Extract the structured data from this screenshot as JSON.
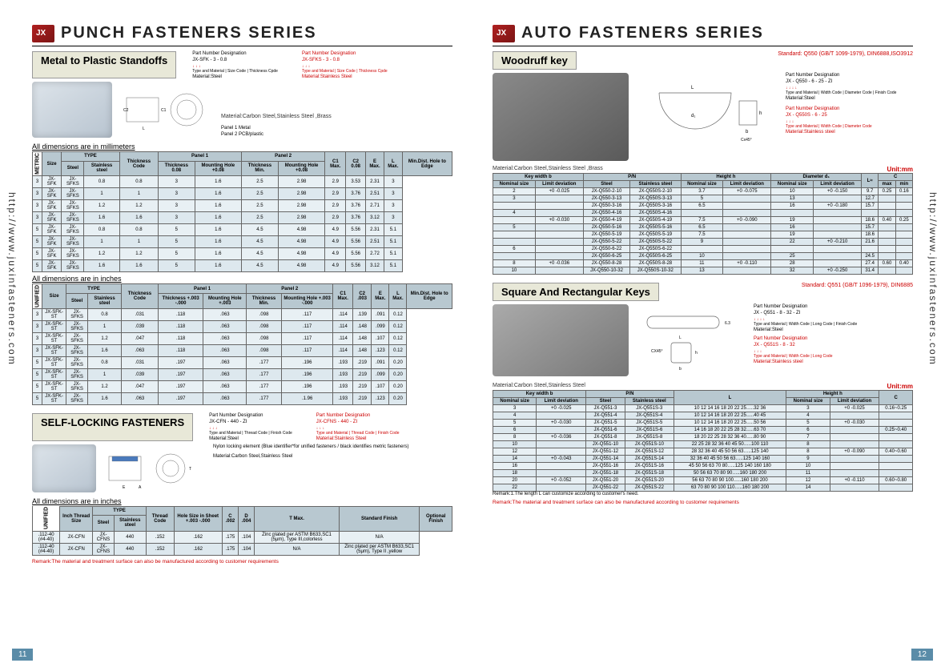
{
  "url": "http://www.juxinfasteners.com",
  "left_page": {
    "page_num": "11",
    "series_title": "PUNCH FASTENERS SERIES",
    "section1": {
      "title": "Metal to Plastic Standoffs",
      "pn1_label": "Part Number Designation",
      "pn1_example": "JX-SFK - 3 - 0.8",
      "pn1_parts": "Type and Material | Size Code | Thickness Cpde",
      "pn1_mat": "Material:Steel",
      "pn2_label": "Part Number Designation",
      "pn2_example": "JX-SFKS - 3 - 0.8",
      "pn2_parts": "Type and Material | Size Code | Thickness Cpde",
      "pn2_mat": "Material:Stainless Steel",
      "material": "Material:Carbon Steel,Stainless Steel ,Brass",
      "legend_p1": "Panel 1 Metal",
      "legend_p2": "Panel 2 PCB/plastic",
      "dims_mm": "All dimensions are in millimeters",
      "dims_in": "All dimensions are in inches",
      "table1_headers": [
        "Size",
        "TYPE",
        "",
        "Thickness Code",
        "Panel 1",
        "",
        "Panel 2",
        "",
        "C1 Max.",
        "C2 0.08",
        "E Max.",
        "L Max.",
        "Min.Dist. Hole to Edge"
      ],
      "table1_sub": [
        "",
        "Steel",
        "Stainless steel",
        "",
        "Thickness 0.08",
        "Mounting Hole +0.08",
        "Thickness Min.",
        "Mounting Hole +0.08",
        "",
        "",
        "",
        "",
        ""
      ],
      "table1_rows": [
        [
          "3",
          "JX-SFK",
          "JX-SFKS",
          "0.8",
          "0.8",
          "3",
          "1.6",
          "2.5",
          "2.98",
          "2.9",
          "3.53",
          "2.31",
          "3"
        ],
        [
          "3",
          "JX-SFK",
          "JX-SFKS",
          "1",
          "1",
          "3",
          "1.6",
          "2.5",
          "2.98",
          "2.9",
          "3.76",
          "2.51",
          "3"
        ],
        [
          "3",
          "JX-SFK",
          "JX-SFKS",
          "1.2",
          "1.2",
          "3",
          "1.6",
          "2.5",
          "2.98",
          "2.9",
          "3.76",
          "2.71",
          "3"
        ],
        [
          "3",
          "JX-SFK",
          "JX-SFKS",
          "1.6",
          "1.6",
          "3",
          "1.6",
          "2.5",
          "2.98",
          "2.9",
          "3.76",
          "3.12",
          "3"
        ],
        [
          "5",
          "JX-SFK",
          "JX-SFKS",
          "0.8",
          "0.8",
          "5",
          "1.6",
          "4.5",
          "4.98",
          "4.9",
          "5.56",
          "2.31",
          "5.1"
        ],
        [
          "5",
          "JX-SFK",
          "JX-SFKS",
          "1",
          "1",
          "5",
          "1.6",
          "4.5",
          "4.98",
          "4.9",
          "5.56",
          "2.51",
          "5.1"
        ],
        [
          "5",
          "JX-SFK",
          "JX-SFKS",
          "1.2",
          "1.2",
          "5",
          "1.6",
          "4.5",
          "4.98",
          "4.9",
          "5.56",
          "2.72",
          "5.1"
        ],
        [
          "5",
          "JX-SFK",
          "JX-SFKS",
          "1.6",
          "1.6",
          "5",
          "1.6",
          "4.5",
          "4.98",
          "4.9",
          "5.56",
          "3.12",
          "5.1"
        ]
      ],
      "table2_headers": [
        "Size",
        "TYPE",
        "",
        "Thickness Code",
        "Panel 1",
        "",
        "Panel 2",
        "",
        "C1 Max.",
        "C2 .003",
        "E Max.",
        "L Max.",
        "Min.Dist. Hole to Edge"
      ],
      "table2_sub": [
        "",
        "Steel",
        "Stainless steel",
        "",
        "Thickness +.003 -.000",
        "Mounting Hole +.003",
        "Thickness Min.",
        "Mounting Hole +.003 -.000",
        "",
        "",
        "",
        "",
        ""
      ],
      "table2_rows": [
        [
          "3",
          "JX-SFK-ST",
          "JX-SFKS",
          "0.8",
          ".031",
          ".118",
          ".063",
          ".098",
          ".117",
          ".114",
          ".139",
          ".091",
          "0.12"
        ],
        [
          "3",
          "JX-SFK-ST",
          "JX-SFKS",
          "1",
          ".039",
          ".118",
          ".063",
          ".098",
          ".117",
          ".114",
          ".148",
          ".099",
          "0.12"
        ],
        [
          "3",
          "JX-SFK-ST",
          "JX-SFKS",
          "1.2",
          ".047",
          ".118",
          ".063",
          ".098",
          ".117",
          ".114",
          ".148",
          ".107",
          "0.12"
        ],
        [
          "3",
          "JX-SFK-ST",
          "JX-SFKS",
          "1.6",
          ".063",
          ".118",
          ".063",
          ".098",
          ".117",
          ".114",
          ".148",
          ".123",
          "0.12"
        ],
        [
          "5",
          "JX-SFK-ST",
          "JX-SFKS",
          "0.8",
          ".031",
          ".197",
          ".063",
          ".177",
          ".196",
          ".193",
          ".219",
          ".091",
          "0.20"
        ],
        [
          "5",
          "JX-SFK-ST",
          "JX-SFKS",
          "1",
          ".039",
          ".197",
          ".063",
          ".177",
          ".196",
          ".193",
          ".219",
          ".099",
          "0.20"
        ],
        [
          "5",
          "JX-SFK-ST",
          "JX-SFKS",
          "1.2",
          ".047",
          ".197",
          ".063",
          ".177",
          ".196",
          ".193",
          ".219",
          ".107",
          "0.20"
        ],
        [
          "5",
          "JX-SFK-ST",
          "JX-SFKS",
          "1.6",
          ".063",
          ".197",
          ".063",
          ".177",
          ".1.96",
          ".193",
          ".219",
          ".123",
          "0.20"
        ]
      ]
    },
    "section2": {
      "title": "SELF-LOCKING FASTENERS",
      "pn1_label": "Part Number Designation",
      "pn1_example": "JX-CFN - 440 - ZI",
      "pn1_parts": "Type and Material | Thread Code | Finish Code",
      "pn1_mat": "Material:Steel",
      "pn2_label": "Part Number Designation",
      "pn2_example": "JX-CFNS - 440 - ZI",
      "pn2_parts": "Type and Material | Thread Code | Finish Code",
      "pn2_mat": "Material:Stainless Steel",
      "nylon_note": "Nylon locking element (Blue identifier*for unified fasteners / black identifies metric fasteners)",
      "material": "Material:Carbon Steel,Stainless Steel",
      "dims": "All dimensions are in inches",
      "headers": [
        "Inch Thread Size",
        "TYPE",
        "",
        "Thread Code",
        "Hole Size in Sheet +.003 -.000",
        "C .002",
        "D .004",
        "T Max.",
        "Standard Finish",
        "Optional Finish"
      ],
      "sub": [
        "",
        "Steel",
        "Stainless steel",
        "",
        "",
        "",
        "",
        "",
        "",
        ""
      ],
      "rows": [
        [
          ".112-40 (#4-40)",
          "JX-CFN",
          "JX-CFNS",
          "440",
          ".152",
          ".162",
          ".175",
          ".104",
          "Zinc plated per ASTM B633,SC1 (5μm), Type III,colorless",
          "N/A"
        ],
        [
          ".112-40 (#4-40)",
          "JX-CFN",
          "JX-CFNS",
          "440",
          ".152",
          ".162",
          ".175",
          ".104",
          "N/A",
          "Zinc plated per ASTM B633,SC1 (5μm), Type II ,yellow"
        ]
      ]
    },
    "remark": "Remark:The material and treatment surface can also be manufactured according to customer requirements"
  },
  "right_page": {
    "page_num": "12",
    "series_title": "AUTO FASTENERS SERIES",
    "section1": {
      "title": "Woodruff key",
      "standard": "Standard: Q550 (GB/T 1099-1979), DIN6888,ISO3912",
      "pn1_label": "Part Number Designation",
      "pn1_example": "JX - Q550 - 6 - 25 - ZI",
      "pn1_parts": "Type and Material | Width Code | Diameter Code | Finish Code",
      "pn1_mat": "Material:Steel",
      "pn2_label": "Part Number Designation",
      "pn2_example": "JX - Q550S - 6 - 25",
      "pn2_parts": "Type and Material | Width Code | Diameter Code",
      "pn2_mat": "Material:Stainless steel",
      "material": "Material:Carbon Steel,Stainless Steel ,Brass",
      "unit": "Unit:mm",
      "headers": [
        "Key width b",
        "",
        "P/N",
        "",
        "Height h",
        "",
        "Diameter d₁",
        "",
        "L≈",
        "C",
        ""
      ],
      "sub": [
        "Nominal size",
        "Limit deviation",
        "Steel",
        "Stainless steel",
        "Nominal size",
        "Limit deviation",
        "Nominal size",
        "Limit deviation",
        "",
        "max",
        "min"
      ],
      "rows": [
        [
          "2",
          "+0 -0.025",
          "JX-Q550-2-10",
          "JX-Q550S-2-10",
          "3.7",
          "+0 -0.075",
          "10",
          "+0 -0.150",
          "9.7",
          "0.25",
          "0.16"
        ],
        [
          "3",
          "",
          "JX-Q550-3-13",
          "JX-Q550S-3-13",
          "5",
          "",
          "13",
          "",
          "12.7",
          "",
          ""
        ],
        [
          "",
          "",
          "JX-Q550-3-16",
          "JX-Q550S-3-16",
          "6.5",
          "",
          "16",
          "+0 -0.180",
          "15.7",
          "",
          ""
        ],
        [
          "4",
          "",
          "JX-Q550-4-16",
          "JX-Q550S-4-16",
          "",
          "",
          "",
          "",
          "",
          "",
          ""
        ],
        [
          "",
          "+0 -0.030",
          "JX-Q550-4-19",
          "JX-Q550S-4-19",
          "7.5",
          "+0 -0.090",
          "19",
          "",
          "18.6",
          "0.40",
          "0.25"
        ],
        [
          "5",
          "",
          "JX-Q550-5-16",
          "JX-Q550S-5-16",
          "6.5",
          "",
          "16",
          "",
          "15.7",
          "",
          ""
        ],
        [
          "",
          "",
          "JX-Q550-5-19",
          "JX-Q550S-5-19",
          "7.5",
          "",
          "19",
          "",
          "18.6",
          "",
          ""
        ],
        [
          "",
          "",
          "JX-Q550-5-22",
          "JX-Q550S-5-22",
          "9",
          "",
          "22",
          "+0 -0.210",
          "21.6",
          "",
          ""
        ],
        [
          "6",
          "",
          "JX-Q550-6-22",
          "JX-Q550S-6-22",
          "",
          "",
          "",
          "",
          "",
          "",
          ""
        ],
        [
          "",
          "",
          "JX-Q550-6-25",
          "JX-Q550S-6-25",
          "10",
          "",
          "25",
          "",
          "24.5",
          "",
          ""
        ],
        [
          "8",
          "+0 -0.036",
          "JX-Q550-8-28",
          "JX-Q550S-8-28",
          "11",
          "+0 -0.110",
          "28",
          "",
          "27.4",
          "0.60",
          "0.40"
        ],
        [
          "10",
          "",
          "JX-Q550-10-32",
          "JX-Q550S-10-32",
          "13",
          "",
          "32",
          "+0 -0.250",
          "31.4",
          "",
          ""
        ]
      ]
    },
    "section2": {
      "title": "Square And Rectangular Keys",
      "standard": "Standard: Q551 (GB/T 1096-1979), DIN6885",
      "pn1_label": "Part Number Designation",
      "pn1_example": "JX - Q551 - 8 - 32 - ZI",
      "pn1_parts": "Type and Material | Width Code | Long Code | Finish Code",
      "pn1_mat": "Material:Steel",
      "pn2_label": "Part Number Designation",
      "pn2_example": "JX - Q551S - 8 - 32",
      "pn2_parts": "Type and Material | Width Code | Long Code",
      "pn2_mat": "Material:Stainless steel",
      "material": "Material:Carbon Steel,Stainless Steel",
      "unit": "Unit:mm",
      "headers": [
        "Key width b",
        "",
        "P/N",
        "",
        "L",
        "Height h",
        "",
        "C"
      ],
      "sub": [
        "Nominal size",
        "Limit deviation",
        "Steel",
        "Stainless steel",
        "",
        "Nominal size",
        "Limit deviation",
        ""
      ],
      "rows": [
        [
          "3",
          "+0 -0.025",
          "JX-Q551-3",
          "JX-Q551S-3",
          "10 12 14 16 18 20 22 25…..32 36",
          "3",
          "+0 -0.025",
          "0.16~0.25"
        ],
        [
          "4",
          "",
          "JX-Q551-4",
          "JX-Q551S-4",
          "10 12 14 16 18 20 22 25…..40 45",
          "4",
          "",
          ""
        ],
        [
          "5",
          "+0 -0.030",
          "JX-Q551-5",
          "JX-Q551S-5",
          "10 12 14 16 18 20 22 25…..50 56",
          "5",
          "+0 -0.030",
          ""
        ],
        [
          "6",
          "",
          "JX-Q551-6",
          "JX-Q551S-6",
          "14 16 18 20 22 25 28 32…..63 70",
          "6",
          "",
          "0.25~0.40"
        ],
        [
          "8",
          "+0 -0.036",
          "JX-Q551-8",
          "JX-Q551S-8",
          "18 20 22 25 28 32 36 40…..80 90",
          "7",
          "",
          ""
        ],
        [
          "10",
          "",
          "JX-Q551-10",
          "JX-Q551S-10",
          "22 25 28 32 36 40 45 50…..100 110",
          "8",
          "",
          ""
        ],
        [
          "12",
          "",
          "JX-Q551-12",
          "JX-Q551S-12",
          "28 32 36 40 45 50 56 63…..125 140",
          "8",
          "+0 -0.090",
          "0.40~0.60"
        ],
        [
          "14",
          "+0 -0.043",
          "JX-Q551-14",
          "JX-Q551S-14",
          "32 36 40 45 50 56 63…..125 140 160",
          "9",
          "",
          ""
        ],
        [
          "16",
          "",
          "JX-Q551-16",
          "JX-Q551S-16",
          "45 50 56 63 70 80…..125 140 160 180",
          "10",
          "",
          ""
        ],
        [
          "18",
          "",
          "JX-Q551-18",
          "JX-Q551S-18",
          "50 56 63 70 80 90…..160 180 200",
          "11",
          "",
          ""
        ],
        [
          "20",
          "+0 -0.052",
          "JX-Q551-20",
          "JX-Q551S-20",
          "56 63 70 80 90 100…..160 180 200",
          "12",
          "+0 -0.110",
          "0.60~0.80"
        ],
        [
          "22",
          "",
          "JX-Q551-22",
          "JX-Q551S-22",
          "63 70 80 90 100 110…..160 180 200",
          "14",
          "",
          ""
        ]
      ],
      "sub_remark": "Remark:1.The length L can customize according to customer's need."
    },
    "remark": "Remark:The material and treatment surface can also be manufactured according to customer requirements"
  }
}
